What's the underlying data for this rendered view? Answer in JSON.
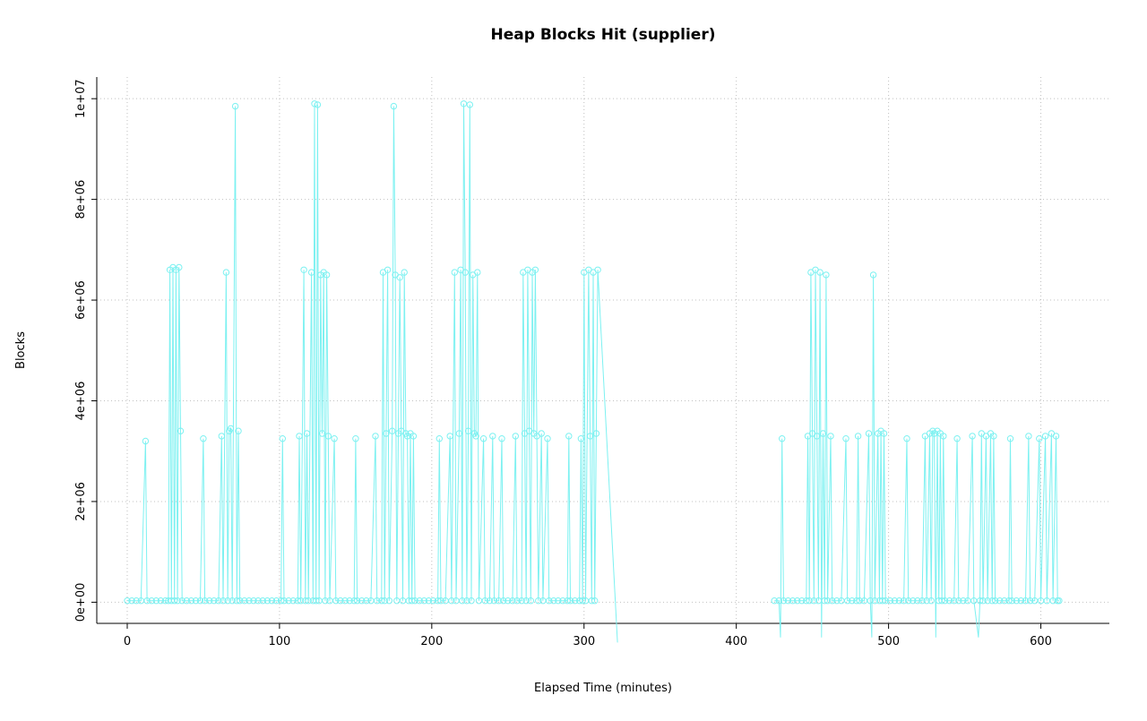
{
  "chart_data": {
    "type": "line",
    "title": "Heap Blocks Hit (supplier)",
    "xlabel": "Elapsed Time (minutes)",
    "ylabel": "Blocks",
    "legend": "none",
    "grid": true,
    "x_ticks": [
      0,
      100,
      200,
      300,
      400,
      500,
      600
    ],
    "x_tick_labels": [
      "0",
      "100",
      "200",
      "300",
      "400",
      "500",
      "600"
    ],
    "y_ticks": [
      0,
      2000000,
      4000000,
      6000000,
      8000000,
      10000000
    ],
    "y_tick_labels": [
      "0e+00",
      "2e+06",
      "4e+06",
      "6e+06",
      "8e+06",
      "1e+07"
    ],
    "xlim": [
      -20,
      645
    ],
    "ylim": [
      -420000,
      10430000
    ],
    "series_color": "#7df1f1",
    "grid_color": "#c0c0c0",
    "axis_color": "#000000",
    "marker": "circle",
    "marker_style": "open",
    "points": [
      [
        0,
        30000
      ],
      [
        3,
        30000
      ],
      [
        6,
        30000
      ],
      [
        9,
        30000
      ],
      [
        12,
        3200000
      ],
      [
        13,
        30000
      ],
      [
        16,
        30000
      ],
      [
        19,
        30000
      ],
      [
        22,
        30000
      ],
      [
        25,
        30000
      ],
      [
        27,
        30000
      ],
      [
        28,
        6600000
      ],
      [
        29,
        30000
      ],
      [
        30,
        6650000
      ],
      [
        31,
        30000
      ],
      [
        32,
        6600000
      ],
      [
        33,
        30000
      ],
      [
        34,
        6650000
      ],
      [
        35,
        3400000
      ],
      [
        36,
        30000
      ],
      [
        39,
        30000
      ],
      [
        42,
        30000
      ],
      [
        45,
        30000
      ],
      [
        48,
        30000
      ],
      [
        50,
        3250000
      ],
      [
        51,
        30000
      ],
      [
        54,
        30000
      ],
      [
        57,
        30000
      ],
      [
        60,
        30000
      ],
      [
        62,
        3300000
      ],
      [
        63,
        30000
      ],
      [
        65,
        6550000
      ],
      [
        66,
        30000
      ],
      [
        67,
        3400000
      ],
      [
        68,
        3450000
      ],
      [
        69,
        30000
      ],
      [
        71,
        9850000
      ],
      [
        72,
        30000
      ],
      [
        73,
        3400000
      ],
      [
        74,
        30000
      ],
      [
        77,
        30000
      ],
      [
        80,
        30000
      ],
      [
        83,
        30000
      ],
      [
        86,
        30000
      ],
      [
        89,
        30000
      ],
      [
        92,
        30000
      ],
      [
        95,
        30000
      ],
      [
        98,
        30000
      ],
      [
        101,
        30000
      ],
      [
        102,
        3250000
      ],
      [
        103,
        30000
      ],
      [
        106,
        30000
      ],
      [
        109,
        30000
      ],
      [
        112,
        30000
      ],
      [
        113,
        3300000
      ],
      [
        114,
        30000
      ],
      [
        116,
        6600000
      ],
      [
        117,
        30000
      ],
      [
        118,
        3350000
      ],
      [
        119,
        30000
      ],
      [
        121,
        6550000
      ],
      [
        122,
        30000
      ],
      [
        123,
        9900000
      ],
      [
        124,
        30000
      ],
      [
        125,
        9880000
      ],
      [
        126,
        30000
      ],
      [
        127,
        6500000
      ],
      [
        128,
        3350000
      ],
      [
        129,
        6550000
      ],
      [
        130,
        30000
      ],
      [
        131,
        6500000
      ],
      [
        132,
        3300000
      ],
      [
        133,
        30000
      ],
      [
        136,
        3250000
      ],
      [
        137,
        30000
      ],
      [
        140,
        30000
      ],
      [
        143,
        30000
      ],
      [
        146,
        30000
      ],
      [
        149,
        30000
      ],
      [
        150,
        3250000
      ],
      [
        151,
        30000
      ],
      [
        154,
        30000
      ],
      [
        157,
        30000
      ],
      [
        160,
        30000
      ],
      [
        163,
        3300000
      ],
      [
        164,
        30000
      ],
      [
        167,
        30000
      ],
      [
        168,
        6550000
      ],
      [
        169,
        30000
      ],
      [
        170,
        3350000
      ],
      [
        171,
        6600000
      ],
      [
        172,
        30000
      ],
      [
        174,
        3400000
      ],
      [
        175,
        9850000
      ],
      [
        176,
        6500000
      ],
      [
        177,
        30000
      ],
      [
        178,
        3350000
      ],
      [
        179,
        6450000
      ],
      [
        180,
        3400000
      ],
      [
        181,
        30000
      ],
      [
        182,
        6550000
      ],
      [
        183,
        3350000
      ],
      [
        184,
        3300000
      ],
      [
        185,
        30000
      ],
      [
        186,
        3350000
      ],
      [
        187,
        30000
      ],
      [
        188,
        3300000
      ],
      [
        189,
        30000
      ],
      [
        192,
        30000
      ],
      [
        195,
        30000
      ],
      [
        198,
        30000
      ],
      [
        201,
        30000
      ],
      [
        204,
        30000
      ],
      [
        205,
        3250000
      ],
      [
        206,
        30000
      ],
      [
        209,
        30000
      ],
      [
        212,
        3300000
      ],
      [
        213,
        30000
      ],
      [
        215,
        6550000
      ],
      [
        216,
        30000
      ],
      [
        218,
        3350000
      ],
      [
        219,
        6600000
      ],
      [
        220,
        30000
      ],
      [
        221,
        9900000
      ],
      [
        222,
        6550000
      ],
      [
        223,
        30000
      ],
      [
        224,
        3400000
      ],
      [
        225,
        9880000
      ],
      [
        226,
        30000
      ],
      [
        227,
        6500000
      ],
      [
        228,
        3350000
      ],
      [
        229,
        3300000
      ],
      [
        230,
        6550000
      ],
      [
        231,
        30000
      ],
      [
        234,
        3250000
      ],
      [
        235,
        30000
      ],
      [
        238,
        30000
      ],
      [
        240,
        3300000
      ],
      [
        241,
        30000
      ],
      [
        244,
        30000
      ],
      [
        246,
        3250000
      ],
      [
        247,
        30000
      ],
      [
        250,
        30000
      ],
      [
        253,
        30000
      ],
      [
        255,
        3300000
      ],
      [
        256,
        30000
      ],
      [
        259,
        30000
      ],
      [
        260,
        6550000
      ],
      [
        261,
        3350000
      ],
      [
        262,
        30000
      ],
      [
        263,
        6600000
      ],
      [
        264,
        3400000
      ],
      [
        265,
        30000
      ],
      [
        266,
        6550000
      ],
      [
        267,
        3350000
      ],
      [
        268,
        6600000
      ],
      [
        269,
        3300000
      ],
      [
        270,
        30000
      ],
      [
        272,
        3350000
      ],
      [
        273,
        30000
      ],
      [
        276,
        3250000
      ],
      [
        277,
        30000
      ],
      [
        280,
        30000
      ],
      [
        283,
        30000
      ],
      [
        286,
        30000
      ],
      [
        289,
        30000
      ],
      [
        290,
        3300000
      ],
      [
        291,
        30000
      ],
      [
        294,
        30000
      ],
      [
        297,
        30000
      ],
      [
        298,
        3250000
      ],
      [
        299,
        30000
      ],
      [
        300,
        6550000
      ],
      [
        301,
        30000
      ],
      [
        303,
        6600000
      ],
      [
        304,
        3300000
      ],
      [
        305,
        30000
      ],
      [
        306,
        6550000
      ],
      [
        307,
        30000
      ],
      [
        308,
        3350000
      ],
      [
        309,
        6600000
      ],
      [
        322,
        -800000
      ],
      null,
      [
        425,
        30000
      ],
      [
        428,
        30000
      ],
      [
        429,
        -700000
      ],
      [
        430,
        3250000
      ],
      [
        431,
        30000
      ],
      [
        434,
        30000
      ],
      [
        437,
        30000
      ],
      [
        440,
        30000
      ],
      [
        443,
        30000
      ],
      [
        446,
        30000
      ],
      [
        447,
        3300000
      ],
      [
        448,
        30000
      ],
      [
        449,
        6550000
      ],
      [
        450,
        3350000
      ],
      [
        451,
        30000
      ],
      [
        452,
        6600000
      ],
      [
        453,
        3300000
      ],
      [
        454,
        30000
      ],
      [
        455,
        6550000
      ],
      [
        456,
        -700000
      ],
      [
        457,
        3350000
      ],
      [
        458,
        30000
      ],
      [
        459,
        6500000
      ],
      [
        460,
        30000
      ],
      [
        462,
        3300000
      ],
      [
        463,
        30000
      ],
      [
        466,
        30000
      ],
      [
        469,
        30000
      ],
      [
        472,
        3250000
      ],
      [
        473,
        30000
      ],
      [
        476,
        30000
      ],
      [
        479,
        30000
      ],
      [
        480,
        3300000
      ],
      [
        481,
        30000
      ],
      [
        484,
        30000
      ],
      [
        487,
        3350000
      ],
      [
        488,
        30000
      ],
      [
        489,
        -700000
      ],
      [
        490,
        6500000
      ],
      [
        491,
        30000
      ],
      [
        493,
        3350000
      ],
      [
        494,
        30000
      ],
      [
        495,
        3400000
      ],
      [
        496,
        30000
      ],
      [
        497,
        3350000
      ],
      [
        498,
        30000
      ],
      [
        501,
        30000
      ],
      [
        504,
        30000
      ],
      [
        507,
        30000
      ],
      [
        510,
        30000
      ],
      [
        512,
        3250000
      ],
      [
        513,
        30000
      ],
      [
        516,
        30000
      ],
      [
        519,
        30000
      ],
      [
        522,
        30000
      ],
      [
        524,
        3300000
      ],
      [
        525,
        30000
      ],
      [
        527,
        3350000
      ],
      [
        528,
        30000
      ],
      [
        529,
        3400000
      ],
      [
        530,
        3350000
      ],
      [
        531,
        -700000
      ],
      [
        532,
        3400000
      ],
      [
        533,
        30000
      ],
      [
        534,
        3350000
      ],
      [
        535,
        30000
      ],
      [
        536,
        3300000
      ],
      [
        537,
        30000
      ],
      [
        540,
        30000
      ],
      [
        543,
        30000
      ],
      [
        545,
        3250000
      ],
      [
        546,
        30000
      ],
      [
        549,
        30000
      ],
      [
        552,
        30000
      ],
      [
        555,
        3300000
      ],
      [
        556,
        30000
      ],
      [
        559,
        -700000
      ],
      [
        560,
        30000
      ],
      [
        561,
        3350000
      ],
      [
        562,
        30000
      ],
      [
        564,
        3300000
      ],
      [
        565,
        30000
      ],
      [
        567,
        3350000
      ],
      [
        568,
        30000
      ],
      [
        569,
        3300000
      ],
      [
        570,
        30000
      ],
      [
        573,
        30000
      ],
      [
        576,
        30000
      ],
      [
        579,
        30000
      ],
      [
        580,
        3250000
      ],
      [
        581,
        30000
      ],
      [
        584,
        30000
      ],
      [
        587,
        30000
      ],
      [
        590,
        30000
      ],
      [
        592,
        3300000
      ],
      [
        593,
        30000
      ],
      [
        596,
        30000
      ],
      [
        599,
        3250000
      ],
      [
        600,
        30000
      ],
      [
        603,
        3300000
      ],
      [
        604,
        30000
      ],
      [
        607,
        3350000
      ],
      [
        608,
        30000
      ],
      [
        610,
        3300000
      ],
      [
        611,
        30000
      ],
      [
        612,
        30000
      ]
    ]
  }
}
